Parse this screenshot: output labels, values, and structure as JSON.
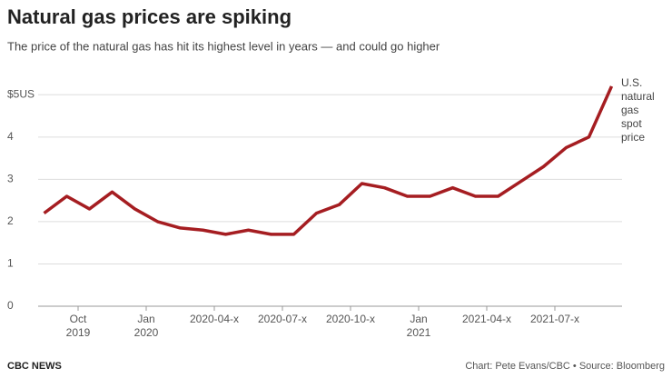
{
  "chart_data": {
    "type": "line",
    "title": "Natural gas prices are spiking",
    "subtitle": "The price of the natural gas has hit its highest level in years — and could go higher",
    "annotation": "U.S. natural gas spot price",
    "brand": "CBC NEWS",
    "source": "Chart: Pete Evans/CBC • Source: Bloomberg",
    "x": [
      "2019-08",
      "2019-09",
      "2019-10",
      "2019-11",
      "2019-12",
      "2020-01",
      "2020-02",
      "2020-03",
      "2020-04",
      "2020-05",
      "2020-06",
      "2020-07",
      "2020-08",
      "2020-09",
      "2020-10",
      "2020-11",
      "2020-12",
      "2021-01",
      "2021-02",
      "2021-03",
      "2021-04",
      "2021-05",
      "2021-06",
      "2021-07",
      "2021-08",
      "2021-09"
    ],
    "values": [
      2.2,
      2.6,
      2.3,
      2.7,
      2.3,
      2.0,
      1.85,
      1.8,
      1.7,
      1.8,
      1.7,
      1.7,
      2.2,
      2.4,
      2.9,
      2.8,
      2.6,
      2.6,
      2.8,
      2.6,
      2.6,
      2.95,
      3.3,
      3.75,
      4.0,
      5.2
    ],
    "color": "#a51d21",
    "xlim": [
      "2019-08",
      "2021-10"
    ],
    "xticks": [
      {
        "value": "2019-10",
        "label": "Oct 2019"
      },
      {
        "value": "2020-01",
        "label": "Jan 2020"
      },
      "2020-04-x",
      "2020-07-x",
      "2020-10-x",
      {
        "value": "2021-01",
        "label": "Jan 2021"
      },
      "2021-04-x",
      "2021-07-x"
    ],
    "ylim": [
      0,
      5.5
    ],
    "yticks": [
      0,
      1,
      2,
      3,
      4,
      {
        "value": 5,
        "label": "$5US"
      }
    ],
    "grid": true
  }
}
